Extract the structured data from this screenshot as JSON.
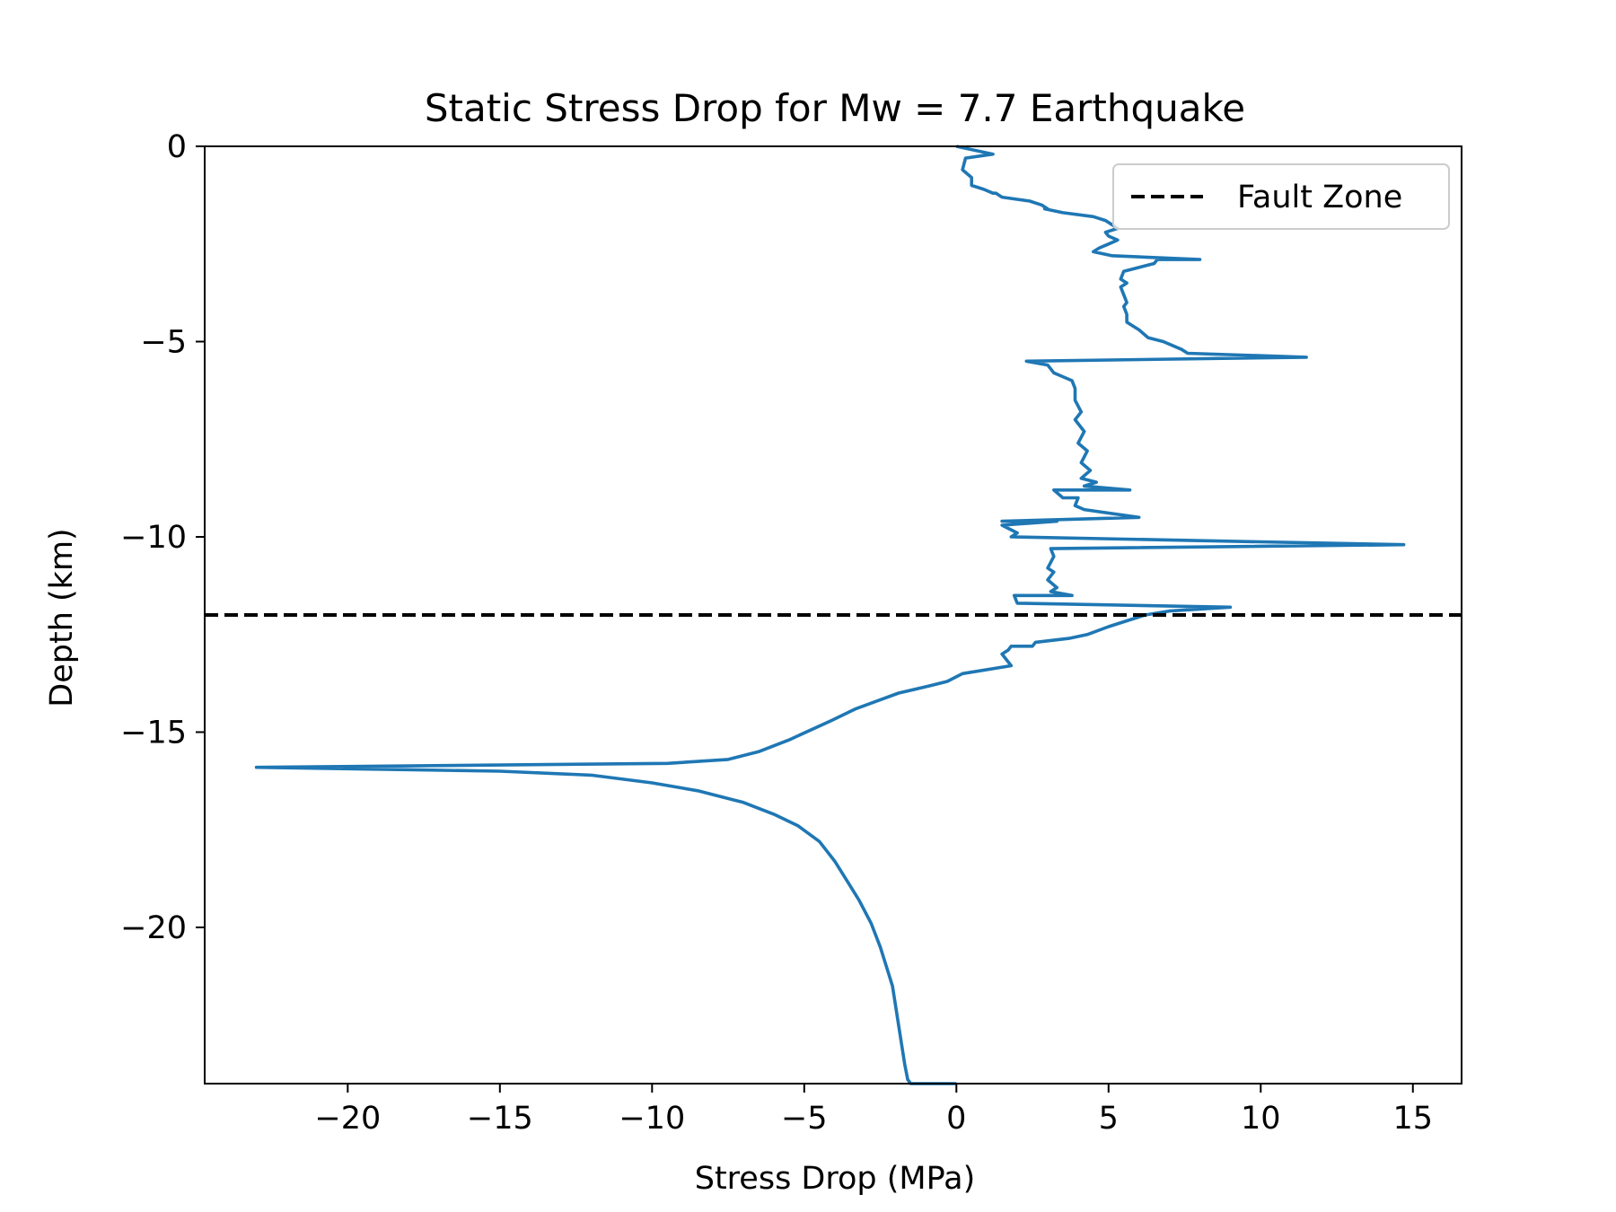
{
  "chart_data": {
    "type": "line",
    "title": "Static Stress Drop for Mw = 7.7 Earthquake",
    "xlabel": "Stress Drop (MPa)",
    "ylabel": "Depth (km)",
    "xlim": [
      -24.7,
      16.6
    ],
    "ylim": [
      -24,
      0
    ],
    "xticks": [
      -20,
      -15,
      -10,
      -5,
      0,
      5,
      10,
      15
    ],
    "yticks": [
      0,
      -5,
      -10,
      -15,
      -20
    ],
    "xtick_labels": [
      "−20",
      "−15",
      "−10",
      "−5",
      "0",
      "5",
      "10",
      "15"
    ],
    "ytick_labels": [
      "0",
      "−5",
      "−10",
      "−15",
      "−20"
    ],
    "grid": false,
    "legend": {
      "placement": "upper right",
      "entries": [
        {
          "label": "Fault Zone",
          "style": "dashed",
          "color": "#000000"
        }
      ]
    },
    "series": [
      {
        "color": "#1f77b4",
        "points": [
          [
            0,
            0
          ],
          [
            1.2,
            -0.2
          ],
          [
            0.3,
            -0.3
          ],
          [
            0.2,
            -0.6
          ],
          [
            0.5,
            -0.8
          ],
          [
            0.5,
            -1.0
          ],
          [
            0.9,
            -1.1
          ],
          [
            1.2,
            -1.2
          ],
          [
            1.3,
            -1.2
          ],
          [
            1.5,
            -1.3
          ],
          [
            2.4,
            -1.4
          ],
          [
            2.8,
            -1.5
          ],
          [
            3.0,
            -1.6
          ],
          [
            2.9,
            -1.6
          ],
          [
            3.5,
            -1.7
          ],
          [
            4.5,
            -1.8
          ],
          [
            4.9,
            -1.9
          ],
          [
            5.3,
            -2.1
          ],
          [
            4.9,
            -2.2
          ],
          [
            5.0,
            -2.3
          ],
          [
            5.3,
            -2.4
          ],
          [
            5.0,
            -2.5
          ],
          [
            4.7,
            -2.6
          ],
          [
            4.5,
            -2.7
          ],
          [
            5.1,
            -2.8
          ],
          [
            8.0,
            -2.9
          ],
          [
            6.6,
            -2.9
          ],
          [
            6.5,
            -3.0
          ],
          [
            5.5,
            -3.2
          ],
          [
            5.4,
            -3.4
          ],
          [
            5.6,
            -3.5
          ],
          [
            5.4,
            -3.6
          ],
          [
            5.5,
            -3.8
          ],
          [
            5.6,
            -4.0
          ],
          [
            5.5,
            -4.1
          ],
          [
            5.6,
            -4.3
          ],
          [
            5.6,
            -4.5
          ],
          [
            5.8,
            -4.6
          ],
          [
            6.0,
            -4.7
          ],
          [
            6.3,
            -4.9
          ],
          [
            6.8,
            -5.0
          ],
          [
            7.4,
            -5.2
          ],
          [
            7.6,
            -5.3
          ],
          [
            11.5,
            -5.4
          ],
          [
            2.3,
            -5.5
          ],
          [
            3.0,
            -5.6
          ],
          [
            3.2,
            -5.8
          ],
          [
            3.5,
            -5.9
          ],
          [
            3.8,
            -6.0
          ],
          [
            3.9,
            -6.2
          ],
          [
            3.9,
            -6.5
          ],
          [
            4.1,
            -6.8
          ],
          [
            3.9,
            -7.0
          ],
          [
            4.2,
            -7.3
          ],
          [
            4.0,
            -7.6
          ],
          [
            4.3,
            -7.8
          ],
          [
            4.1,
            -8.1
          ],
          [
            4.4,
            -8.3
          ],
          [
            4.1,
            -8.5
          ],
          [
            4.6,
            -8.6
          ],
          [
            4.2,
            -8.7
          ],
          [
            5.7,
            -8.8
          ],
          [
            3.2,
            -8.8
          ],
          [
            3.5,
            -9.0
          ],
          [
            4.0,
            -9.0
          ],
          [
            3.9,
            -9.2
          ],
          [
            4.2,
            -9.3
          ],
          [
            6.0,
            -9.5
          ],
          [
            1.5,
            -9.6
          ],
          [
            3.3,
            -9.6
          ],
          [
            1.5,
            -9.7
          ],
          [
            2.0,
            -9.9
          ],
          [
            1.8,
            -10.0
          ],
          [
            14.7,
            -10.2
          ],
          [
            3.1,
            -10.3
          ],
          [
            3.2,
            -10.5
          ],
          [
            3.0,
            -10.8
          ],
          [
            3.2,
            -10.9
          ],
          [
            3.0,
            -11.1
          ],
          [
            3.3,
            -11.3
          ],
          [
            3.1,
            -11.4
          ],
          [
            3.8,
            -11.5
          ],
          [
            1.9,
            -11.5
          ],
          [
            2.0,
            -11.7
          ],
          [
            9.0,
            -11.8
          ],
          [
            7.0,
            -11.9
          ],
          [
            6.2,
            -12.0
          ],
          [
            5.0,
            -12.3
          ],
          [
            4.3,
            -12.5
          ],
          [
            3.7,
            -12.6
          ],
          [
            2.6,
            -12.7
          ],
          [
            2.5,
            -12.8
          ],
          [
            1.8,
            -12.8
          ],
          [
            1.7,
            -12.9
          ],
          [
            1.5,
            -13.0
          ],
          [
            1.8,
            -13.3
          ],
          [
            0.2,
            -13.5
          ],
          [
            -0.3,
            -13.7
          ],
          [
            -0.8,
            -13.8
          ],
          [
            -1.9,
            -14.0
          ],
          [
            -2.6,
            -14.2
          ],
          [
            -3.3,
            -14.4
          ],
          [
            -4.1,
            -14.7
          ],
          [
            -5.5,
            -15.2
          ],
          [
            -6.5,
            -15.5
          ],
          [
            -7.5,
            -15.7
          ],
          [
            -9.5,
            -15.8
          ],
          [
            -23.0,
            -15.9
          ],
          [
            -15.0,
            -16.0
          ],
          [
            -12.0,
            -16.1
          ],
          [
            -10.0,
            -16.3
          ],
          [
            -8.5,
            -16.5
          ],
          [
            -7.0,
            -16.8
          ],
          [
            -6.0,
            -17.1
          ],
          [
            -5.2,
            -17.4
          ],
          [
            -4.5,
            -17.8
          ],
          [
            -4.0,
            -18.3
          ],
          [
            -3.6,
            -18.8
          ],
          [
            -3.2,
            -19.3
          ],
          [
            -2.8,
            -19.9
          ],
          [
            -2.5,
            -20.5
          ],
          [
            -2.3,
            -21.0
          ],
          [
            -2.1,
            -21.5
          ],
          [
            -2.0,
            -22.0
          ],
          [
            -1.9,
            -22.5
          ],
          [
            -1.8,
            -23.0
          ],
          [
            -1.7,
            -23.5
          ],
          [
            -1.6,
            -23.9
          ],
          [
            -1.5,
            -24.0
          ],
          [
            0,
            -24.0
          ]
        ]
      },
      {
        "name": "Fault Zone",
        "color": "#000000",
        "style": "dashed",
        "points": [
          [
            -24.7,
            -12
          ],
          [
            16.6,
            -12
          ]
        ]
      }
    ]
  }
}
